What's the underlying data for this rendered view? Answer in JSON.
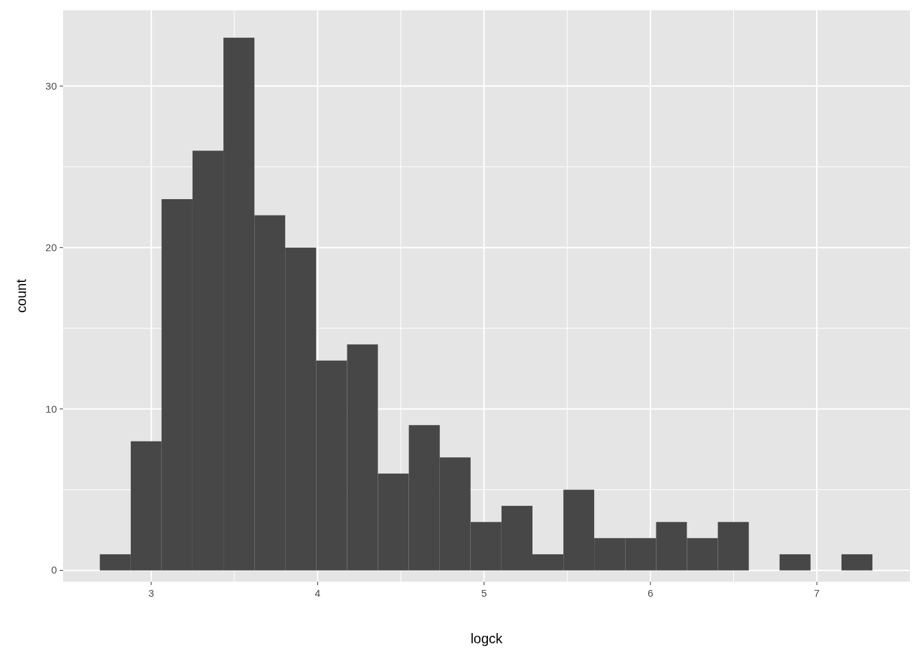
{
  "chart_data": {
    "type": "histogram",
    "xlabel": "logck",
    "ylabel": "count",
    "bins": [
      2.691,
      2.877,
      3.062,
      3.248,
      3.434,
      3.62,
      3.805,
      3.991,
      4.177,
      4.362,
      4.548,
      4.734,
      4.919,
      5.105,
      5.291,
      5.477,
      5.662,
      5.848,
      6.034,
      6.219,
      6.405,
      6.591,
      6.776,
      6.962,
      7.148,
      7.334
    ],
    "values": [
      1,
      8,
      23,
      26,
      33,
      22,
      20,
      13,
      14,
      6,
      9,
      7,
      3,
      4,
      1,
      5,
      2,
      2,
      3,
      2,
      3,
      0,
      1,
      0,
      1
    ],
    "color": "#474747",
    "xlim": [
      2.47,
      7.56
    ],
    "xticks": [
      3,
      4,
      5,
      6,
      7
    ],
    "ylim": [
      -0.7,
      34.7
    ],
    "yticks": [
      0,
      10,
      20,
      30
    ],
    "grid": true
  }
}
